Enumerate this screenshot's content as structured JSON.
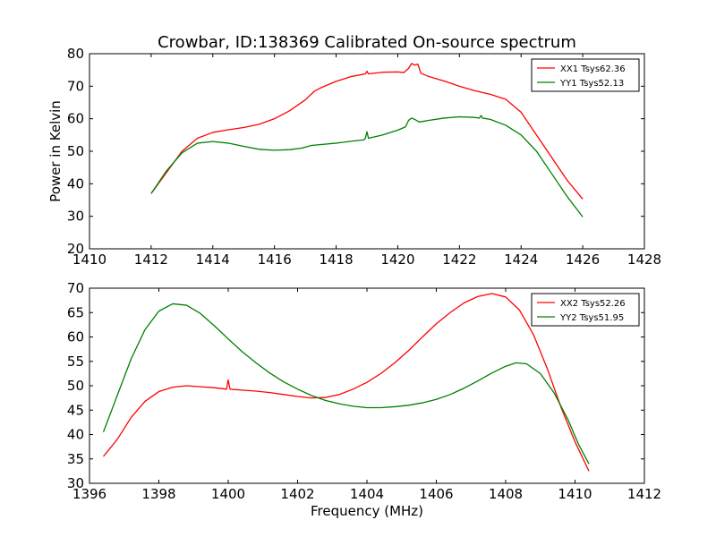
{
  "figure": {
    "title": "Crowbar, ID:138369 Calibrated On-source spectrum"
  },
  "chart_data": [
    {
      "type": "line",
      "title": "Crowbar, ID:138369 Calibrated On-source spectrum",
      "xlabel": "",
      "ylabel": "Power in Kelvin",
      "xlim": [
        1410,
        1428
      ],
      "ylim": [
        20,
        80
      ],
      "xticks": [
        1410,
        1412,
        1414,
        1416,
        1418,
        1420,
        1422,
        1424,
        1426,
        1428
      ],
      "yticks": [
        20,
        30,
        40,
        50,
        60,
        70,
        80
      ],
      "grid": false,
      "legend_position": "top-right",
      "series": [
        {
          "name": "XX1 Tsys62.36",
          "color": "#ff0000",
          "points": [
            [
              1412.0,
              37.0
            ],
            [
              1412.5,
              43.5
            ],
            [
              1413.0,
              50.0
            ],
            [
              1413.5,
              54.0
            ],
            [
              1414.0,
              55.8
            ],
            [
              1414.5,
              56.6
            ],
            [
              1415.0,
              57.3
            ],
            [
              1415.5,
              58.3
            ],
            [
              1416.0,
              60.0
            ],
            [
              1416.5,
              62.5
            ],
            [
              1417.0,
              65.8
            ],
            [
              1417.3,
              68.5
            ],
            [
              1417.5,
              69.5
            ],
            [
              1418.0,
              71.5
            ],
            [
              1418.5,
              73.0
            ],
            [
              1418.95,
              73.8
            ],
            [
              1419.0,
              74.6
            ],
            [
              1419.05,
              73.8
            ],
            [
              1419.5,
              74.3
            ],
            [
              1420.0,
              74.4
            ],
            [
              1420.2,
              74.2
            ],
            [
              1420.35,
              75.5
            ],
            [
              1420.45,
              77.0
            ],
            [
              1420.55,
              76.5
            ],
            [
              1420.65,
              76.8
            ],
            [
              1420.75,
              74.0
            ],
            [
              1421.0,
              73.0
            ],
            [
              1421.5,
              71.6
            ],
            [
              1422.0,
              70.0
            ],
            [
              1422.5,
              68.6
            ],
            [
              1423.0,
              67.5
            ],
            [
              1423.5,
              66.0
            ],
            [
              1424.0,
              62.0
            ],
            [
              1424.5,
              55.0
            ],
            [
              1425.0,
              48.0
            ],
            [
              1425.5,
              41.0
            ],
            [
              1426.0,
              35.3
            ]
          ]
        },
        {
          "name": "YY1 Tsys52.13",
          "color": "#008000",
          "points": [
            [
              1412.0,
              37.0
            ],
            [
              1412.5,
              44.0
            ],
            [
              1413.0,
              49.5
            ],
            [
              1413.5,
              52.5
            ],
            [
              1414.0,
              53.0
            ],
            [
              1414.5,
              52.5
            ],
            [
              1415.0,
              51.5
            ],
            [
              1415.5,
              50.6
            ],
            [
              1416.0,
              50.3
            ],
            [
              1416.5,
              50.5
            ],
            [
              1416.9,
              51.0
            ],
            [
              1417.2,
              51.8
            ],
            [
              1418.0,
              52.5
            ],
            [
              1418.5,
              53.1
            ],
            [
              1418.9,
              53.5
            ],
            [
              1418.95,
              54.0
            ],
            [
              1419.0,
              56.0
            ],
            [
              1419.05,
              54.0
            ],
            [
              1419.5,
              55.0
            ],
            [
              1420.0,
              56.5
            ],
            [
              1420.25,
              57.5
            ],
            [
              1420.35,
              59.5
            ],
            [
              1420.45,
              60.2
            ],
            [
              1420.55,
              59.8
            ],
            [
              1420.7,
              59.0
            ],
            [
              1421.0,
              59.5
            ],
            [
              1421.5,
              60.2
            ],
            [
              1422.0,
              60.6
            ],
            [
              1422.5,
              60.4
            ],
            [
              1422.65,
              60.2
            ],
            [
              1422.7,
              61.0
            ],
            [
              1422.75,
              60.2
            ],
            [
              1423.0,
              59.8
            ],
            [
              1423.5,
              58.0
            ],
            [
              1424.0,
              55.0
            ],
            [
              1424.5,
              50.0
            ],
            [
              1425.0,
              43.0
            ],
            [
              1425.5,
              36.0
            ],
            [
              1426.0,
              29.8
            ]
          ]
        }
      ]
    },
    {
      "type": "line",
      "title": "",
      "xlabel": "Frequency (MHz)",
      "ylabel": "",
      "xlim": [
        1396,
        1412
      ],
      "ylim": [
        30,
        70
      ],
      "xticks": [
        1396,
        1398,
        1400,
        1402,
        1404,
        1406,
        1408,
        1410,
        1412
      ],
      "yticks": [
        30,
        35,
        40,
        45,
        50,
        55,
        60,
        65,
        70
      ],
      "grid": false,
      "legend_position": "top-right",
      "series": [
        {
          "name": "XX2 Tsys52.26",
          "color": "#ff0000",
          "points": [
            [
              1396.4,
              35.5
            ],
            [
              1396.8,
              39.0
            ],
            [
              1397.2,
              43.5
            ],
            [
              1397.6,
              46.8
            ],
            [
              1398.0,
              48.8
            ],
            [
              1398.4,
              49.7
            ],
            [
              1398.8,
              50.0
            ],
            [
              1399.2,
              49.8
            ],
            [
              1399.6,
              49.6
            ],
            [
              1399.95,
              49.3
            ],
            [
              1400.0,
              51.2
            ],
            [
              1400.05,
              49.3
            ],
            [
              1400.4,
              49.1
            ],
            [
              1400.8,
              48.9
            ],
            [
              1401.2,
              48.6
            ],
            [
              1401.6,
              48.2
            ],
            [
              1402.0,
              47.8
            ],
            [
              1402.4,
              47.5
            ],
            [
              1402.8,
              47.6
            ],
            [
              1403.2,
              48.2
            ],
            [
              1403.6,
              49.3
            ],
            [
              1404.0,
              50.7
            ],
            [
              1404.4,
              52.5
            ],
            [
              1404.8,
              54.7
            ],
            [
              1405.2,
              57.2
            ],
            [
              1405.6,
              60.0
            ],
            [
              1406.0,
              62.7
            ],
            [
              1406.4,
              65.0
            ],
            [
              1406.8,
              67.0
            ],
            [
              1407.2,
              68.3
            ],
            [
              1407.6,
              68.9
            ],
            [
              1408.0,
              68.2
            ],
            [
              1408.4,
              65.5
            ],
            [
              1408.8,
              60.5
            ],
            [
              1409.2,
              53.5
            ],
            [
              1409.6,
              45.5
            ],
            [
              1410.0,
              38.5
            ],
            [
              1410.4,
              32.5
            ]
          ]
        },
        {
          "name": "YY2 Tsys51.95",
          "color": "#008000",
          "points": [
            [
              1396.4,
              40.5
            ],
            [
              1396.8,
              48.0
            ],
            [
              1397.2,
              55.5
            ],
            [
              1397.6,
              61.5
            ],
            [
              1398.0,
              65.3
            ],
            [
              1398.4,
              66.8
            ],
            [
              1398.8,
              66.5
            ],
            [
              1399.2,
              64.8
            ],
            [
              1399.6,
              62.3
            ],
            [
              1400.0,
              59.6
            ],
            [
              1400.4,
              57.0
            ],
            [
              1400.8,
              54.7
            ],
            [
              1401.2,
              52.6
            ],
            [
              1401.6,
              50.8
            ],
            [
              1402.0,
              49.3
            ],
            [
              1402.4,
              48.0
            ],
            [
              1402.8,
              47.0
            ],
            [
              1403.2,
              46.3
            ],
            [
              1403.6,
              45.8
            ],
            [
              1404.0,
              45.5
            ],
            [
              1404.4,
              45.5
            ],
            [
              1404.8,
              45.7
            ],
            [
              1405.2,
              46.0
            ],
            [
              1405.6,
              46.5
            ],
            [
              1406.0,
              47.2
            ],
            [
              1406.4,
              48.2
            ],
            [
              1406.8,
              49.5
            ],
            [
              1407.2,
              51.0
            ],
            [
              1407.6,
              52.6
            ],
            [
              1408.0,
              54.0
            ],
            [
              1408.3,
              54.7
            ],
            [
              1408.6,
              54.5
            ],
            [
              1409.0,
              52.5
            ],
            [
              1409.4,
              48.5
            ],
            [
              1409.8,
              43.0
            ],
            [
              1410.1,
              38.0
            ],
            [
              1410.4,
              34.0
            ]
          ]
        }
      ]
    }
  ]
}
